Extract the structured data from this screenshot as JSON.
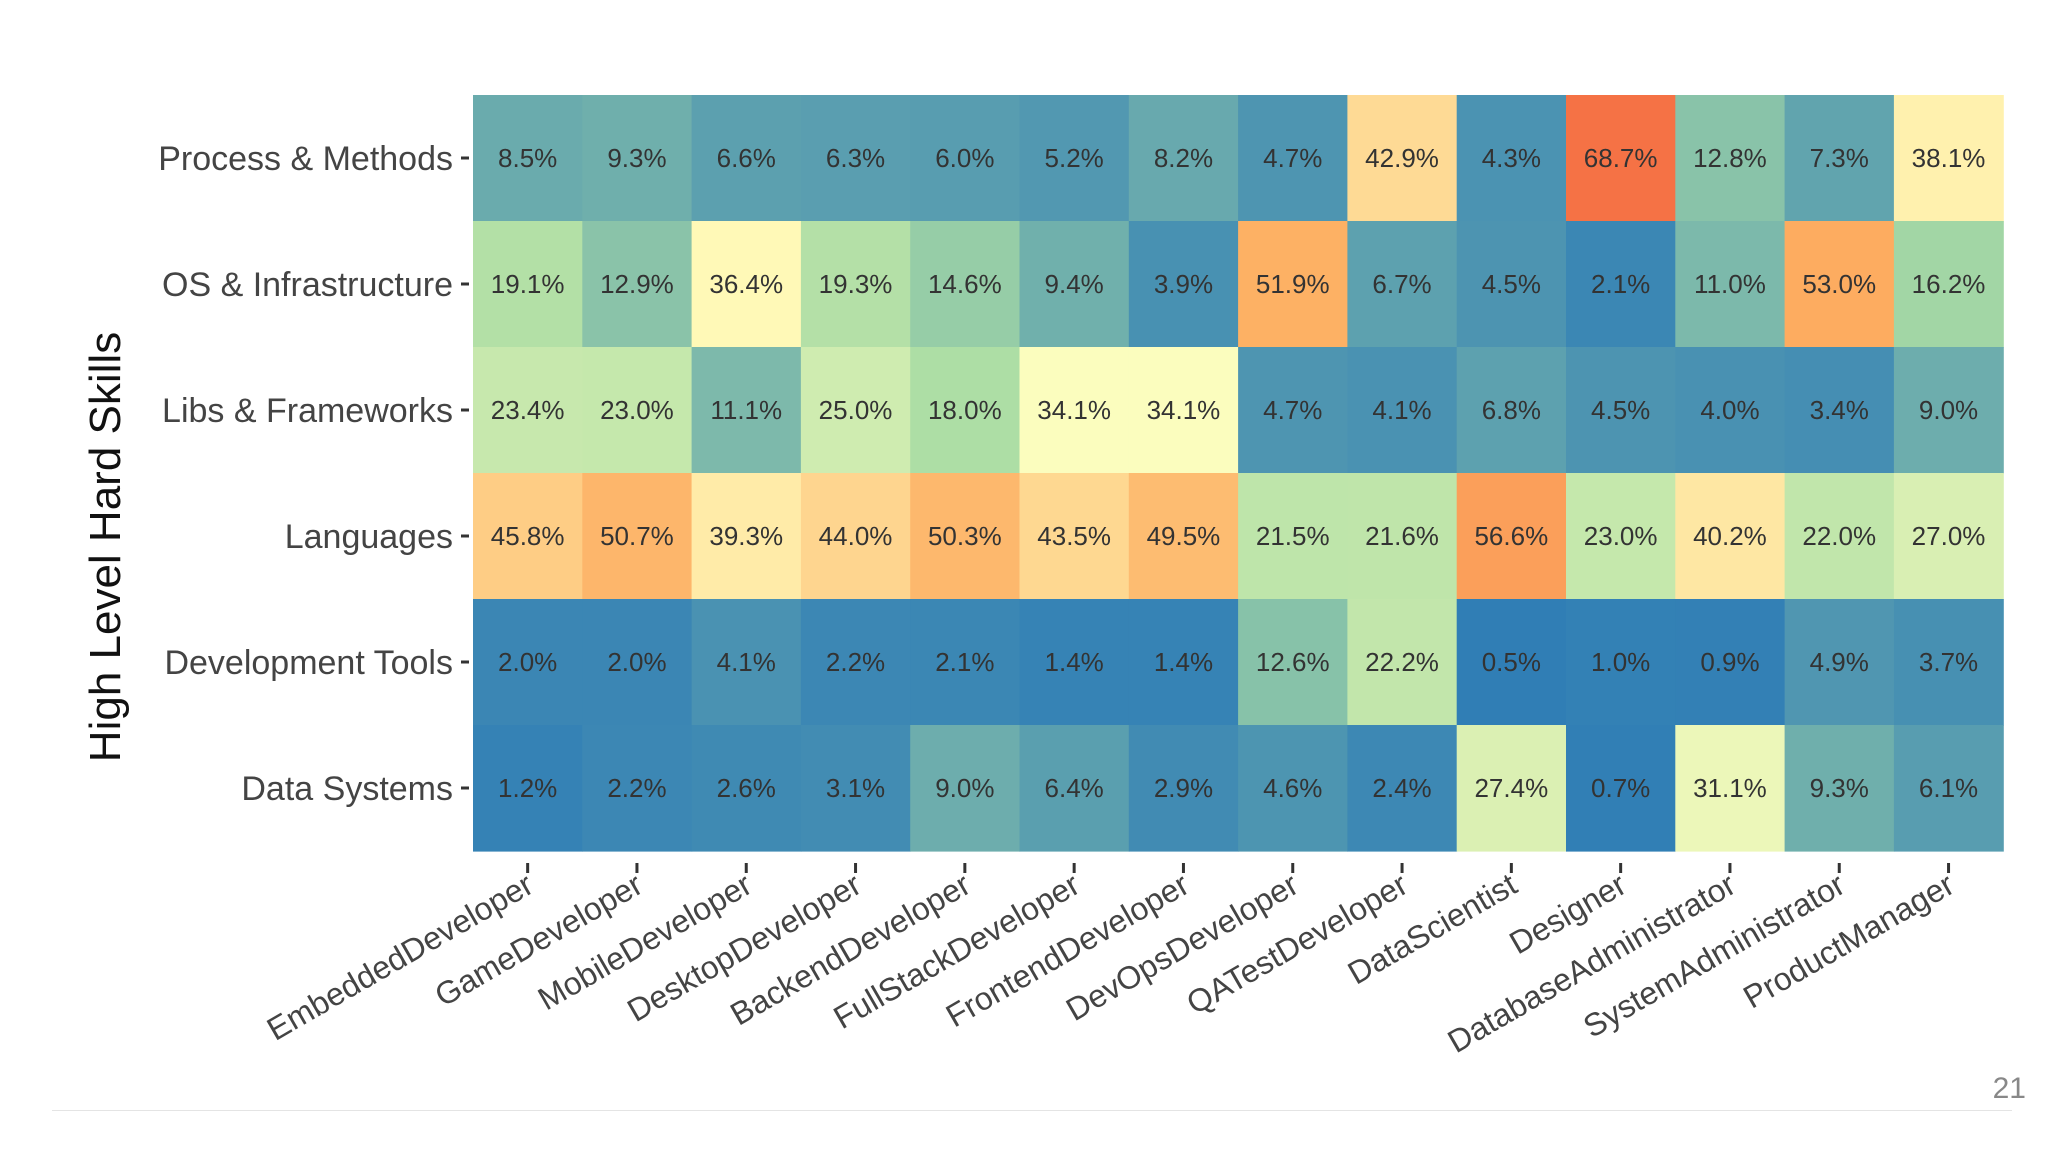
{
  "slide": {
    "page_number": "21"
  },
  "chart_data": {
    "type": "heatmap",
    "ylabel": "High Level Hard Skills",
    "xlabel": "",
    "rows": [
      "Process & Methods",
      "OS & Infrastructure",
      "Libs & Frameworks",
      "Languages",
      "Development Tools",
      "Data Systems"
    ],
    "columns": [
      "EmbeddedDeveloper",
      "GameDeveloper",
      "MobileDeveloper",
      "DesktopDeveloper",
      "BackendDeveloper",
      "FullStackDeveloper",
      "FrontendDeveloper",
      "DevOpsDeveloper",
      "QATestDeveloper",
      "DataScientist",
      "Designer",
      "DatabaseAdministrator",
      "SystemAdministrator",
      "ProductManager"
    ],
    "values": [
      [
        8.5,
        9.3,
        6.6,
        6.3,
        6.0,
        5.2,
        8.2,
        4.7,
        42.9,
        4.3,
        68.7,
        12.8,
        7.3,
        38.1
      ],
      [
        19.1,
        12.9,
        36.4,
        19.3,
        14.6,
        9.4,
        3.9,
        51.9,
        6.7,
        4.5,
        2.1,
        11.0,
        53.0,
        16.2
      ],
      [
        23.4,
        23.0,
        11.1,
        25.0,
        18.0,
        34.1,
        34.1,
        4.7,
        4.1,
        6.8,
        4.5,
        4.0,
        3.4,
        9.0
      ],
      [
        45.8,
        50.7,
        39.3,
        44.0,
        50.3,
        43.5,
        49.5,
        21.5,
        21.6,
        56.6,
        23.0,
        40.2,
        22.0,
        27.0
      ],
      [
        2.0,
        2.0,
        4.1,
        2.2,
        2.1,
        1.4,
        1.4,
        12.6,
        22.2,
        0.5,
        1.0,
        0.9,
        4.9,
        3.7
      ],
      [
        1.2,
        2.2,
        2.6,
        3.1,
        9.0,
        6.4,
        2.9,
        4.6,
        2.4,
        27.4,
        0.7,
        31.1,
        9.3,
        6.1
      ]
    ],
    "cell_labels": [
      [
        "8.5%",
        "9.3%",
        "6.6%",
        "6.3%",
        "6.0%",
        "5.2%",
        "8.2%",
        "4.7%",
        "42.9%",
        "4.3%",
        "68.7%",
        "12.8%",
        "7.3%",
        "38.1%"
      ],
      [
        "19.1%",
        "12.9%",
        "36.4%",
        "19.3%",
        "14.6%",
        "9.4%",
        "3.9%",
        "51.9%",
        "6.7%",
        "4.5%",
        "2.1%",
        "11.0%",
        "53.0%",
        "16.2%"
      ],
      [
        "23.4%",
        "23.0%",
        "11.1%",
        "25.0%",
        "18.0%",
        "34.1%",
        "34.1%",
        "4.7%",
        "4.1%",
        "6.8%",
        "4.5%",
        "4.0%",
        "3.4%",
        "9.0%"
      ],
      [
        "45.8%",
        "50.7%",
        "39.3%",
        "44.0%",
        "50.3%",
        "43.5%",
        "49.5%",
        "21.5%",
        "21.6%",
        "56.6%",
        "23.0%",
        "40.2%",
        "22.0%",
        "27.0%"
      ],
      [
        "2.0%",
        "2.0%",
        "4.1%",
        "2.2%",
        "2.1%",
        "1.4%",
        "1.4%",
        "12.6%",
        "22.2%",
        "0.5%",
        "1.0%",
        "0.9%",
        "4.9%",
        "3.7%"
      ],
      [
        "1.2%",
        "2.2%",
        "2.6%",
        "3.1%",
        "9.0%",
        "6.4%",
        "2.9%",
        "4.6%",
        "2.4%",
        "27.4%",
        "0.7%",
        "31.1%",
        "9.3%",
        "6.1%"
      ]
    ],
    "color_scale": [
      "#2c7bb6",
      "#abdda4",
      "#ffffbf",
      "#fdae61",
      "#f46d43"
    ],
    "value_range": [
      0,
      70
    ]
  }
}
